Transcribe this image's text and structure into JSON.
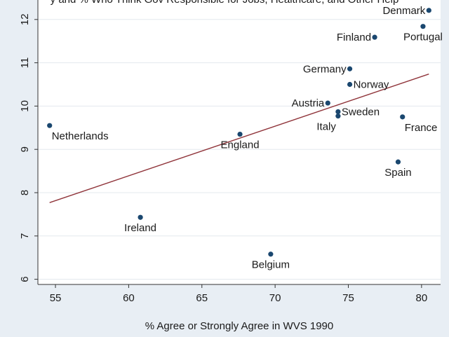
{
  "chart_data": {
    "type": "scatter",
    "title": "y and % Who Think Gov Responsible for Jobs, Healthcare, and Other Help",
    "xlabel": "% Agree or Strongly Agree in WVS 1990",
    "ylabel": "",
    "xlim": [
      53.8,
      81.3
    ],
    "ylim": [
      5.88,
      12.45
    ],
    "xticks": [
      55,
      60,
      65,
      70,
      75,
      80
    ],
    "yticks": [
      6,
      7,
      8,
      9,
      10,
      11,
      12
    ],
    "grid": "horizontal",
    "legend": "none",
    "points": [
      {
        "label": "Netherlands",
        "x": 54.6,
        "y": 9.55,
        "lpos": "below-right"
      },
      {
        "label": "Ireland",
        "x": 60.8,
        "y": 7.43,
        "lpos": "below"
      },
      {
        "label": "England",
        "x": 67.6,
        "y": 9.35,
        "lpos": "below"
      },
      {
        "label": "Belgium",
        "x": 69.7,
        "y": 6.58,
        "lpos": "below"
      },
      {
        "label": "Austria",
        "x": 73.6,
        "y": 10.07,
        "lpos": "left"
      },
      {
        "label": "Italy",
        "x": 74.3,
        "y": 9.77,
        "lpos": "below-left"
      },
      {
        "label": "Sweden",
        "x": 74.3,
        "y": 9.87,
        "lpos": "right"
      },
      {
        "label": "Germany",
        "x": 75.1,
        "y": 10.86,
        "lpos": "left"
      },
      {
        "label": "Norway",
        "x": 75.1,
        "y": 10.5,
        "lpos": "right"
      },
      {
        "label": "Finland",
        "x": 76.8,
        "y": 11.59,
        "lpos": "left"
      },
      {
        "label": "Spain",
        "x": 78.4,
        "y": 8.71,
        "lpos": "below"
      },
      {
        "label": "France",
        "x": 78.7,
        "y": 9.75,
        "lpos": "below-right"
      },
      {
        "label": "Portugal",
        "x": 80.1,
        "y": 11.84,
        "lpos": "below"
      },
      {
        "label": "Denmark",
        "x": 80.5,
        "y": 12.21,
        "lpos": "left"
      }
    ],
    "fit_line": {
      "x": [
        54.6,
        80.5
      ],
      "y": [
        7.77,
        10.74
      ]
    },
    "colors": {
      "background": "#e8eef4",
      "plot_background": "#ffffff",
      "point": "#1a476f",
      "fit_line": "#90353b",
      "grid": "#e3e8ee",
      "axis": "#333333"
    }
  }
}
